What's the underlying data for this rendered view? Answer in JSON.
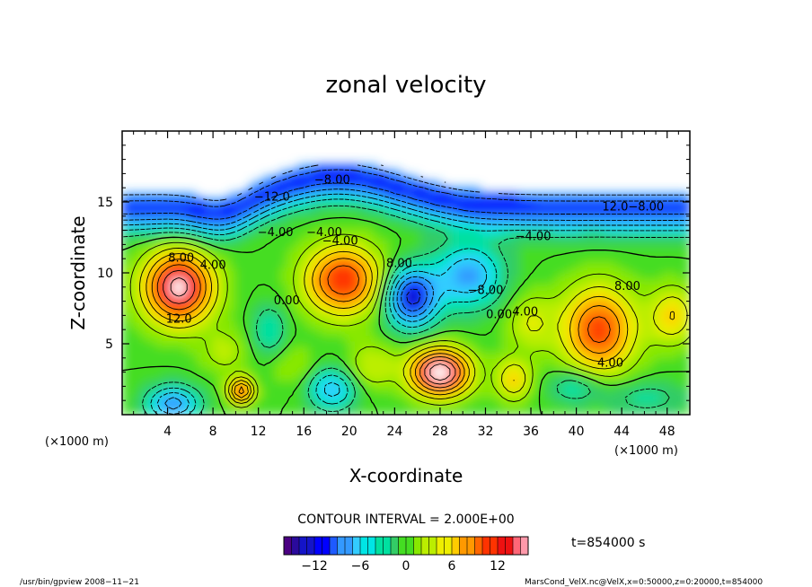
{
  "chart_data": {
    "type": "heatmap",
    "title": "zonal velocity",
    "xlabel": "X-coordinate",
    "ylabel": "Z-coordinate",
    "x_unit": "(×1000 m)",
    "y_unit": "(×1000 m)",
    "xlim": [
      0,
      50
    ],
    "ylim": [
      0,
      20
    ],
    "x_ticks": [
      "4",
      "8",
      "12",
      "16",
      "20",
      "24",
      "28",
      "32",
      "36",
      "40",
      "44",
      "48"
    ],
    "y_ticks": [
      "5",
      "10",
      "15"
    ],
    "contour_interval_text": "CONTOUR INTERVAL = 2.000E+00",
    "time_text": "t=854000 s",
    "colorbar": {
      "min": -16,
      "max": 16,
      "step": 1,
      "tick_labels": [
        "−12",
        "−6",
        "0",
        "6",
        "12"
      ],
      "tick_values": [
        -12,
        -6,
        0,
        6,
        12
      ]
    },
    "contour_labels": [
      {
        "text": "−8.00",
        "x": 18.5,
        "z": 16.3
      },
      {
        "text": "−12.0",
        "x": 13.2,
        "z": 15.1
      },
      {
        "text": "−4.00",
        "x": 13.5,
        "z": 12.6
      },
      {
        "text": "−4.00",
        "x": 17.8,
        "z": 12.6
      },
      {
        "text": "−4.00",
        "x": 19.2,
        "z": 12.0
      },
      {
        "text": "−4.00",
        "x": 36.2,
        "z": 12.3
      },
      {
        "text": "12.0−8.00",
        "x": 45.0,
        "z": 14.4
      },
      {
        "text": "8.00",
        "x": 5.2,
        "z": 10.8
      },
      {
        "text": "4.00",
        "x": 8.0,
        "z": 10.3
      },
      {
        "text": "12.0",
        "x": 5.0,
        "z": 6.5
      },
      {
        "text": "0.00",
        "x": 14.5,
        "z": 7.8
      },
      {
        "text": "8.00",
        "x": 24.4,
        "z": 10.4
      },
      {
        "text": "−8.00",
        "x": 32.0,
        "z": 8.5
      },
      {
        "text": "0.00",
        "x": 33.2,
        "z": 6.8
      },
      {
        "text": "4.00",
        "x": 35.5,
        "z": 7.0
      },
      {
        "text": "8.00",
        "x": 44.5,
        "z": 8.8
      },
      {
        "text": "4.00",
        "x": 43.0,
        "z": 3.4
      }
    ]
  },
  "colors": [
    "#4b0082",
    "#2a0a9c",
    "#1414c8",
    "#0000ff",
    "#1e5aff",
    "#3399ff",
    "#33ccff",
    "#00e5e5",
    "#00e0a0",
    "#33cc66",
    "#44dd22",
    "#88e800",
    "#bbee00",
    "#eeee00",
    "#ffcc00",
    "#ff9900",
    "#ff6600",
    "#ff3300",
    "#ee1111",
    "#ff6677",
    "#ff99aa"
  ],
  "footer": {
    "left": "/usr/bin/gpview   2008−11−21",
    "right": "MarsCond_VelX.nc@VelX,x=0:50000,z=0:20000,t=854000"
  }
}
